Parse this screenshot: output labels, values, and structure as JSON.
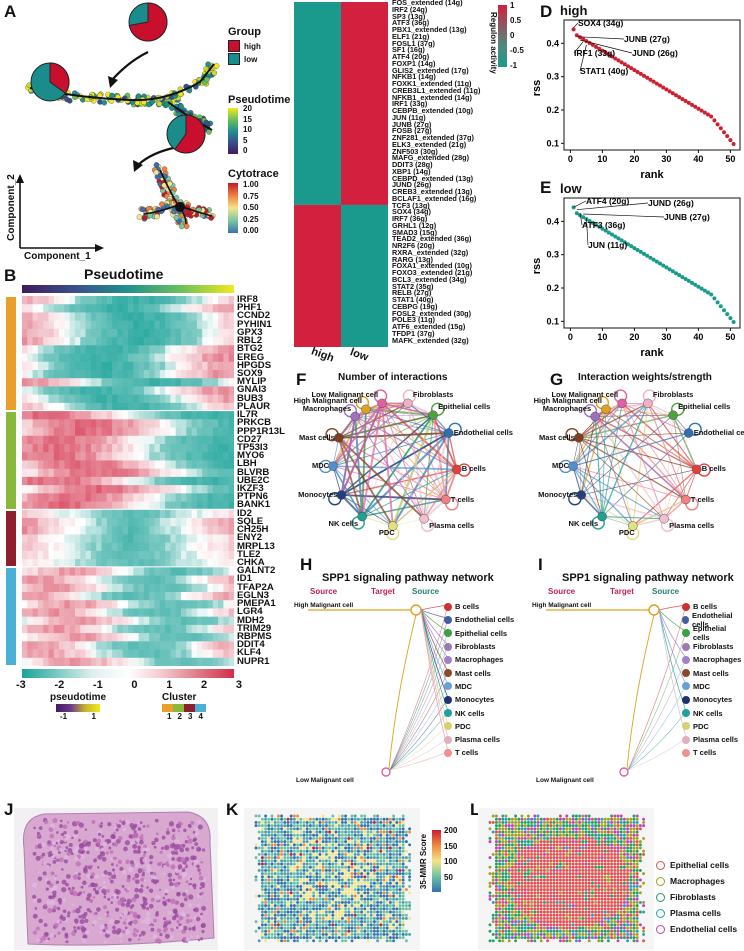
{
  "panels": {
    "A": {
      "label": "A",
      "legend_group_title": "Group",
      "legend_group_items": [
        {
          "name": "high",
          "color": "#c8102e"
        },
        {
          "name": "low",
          "color": "#1a8c8c"
        }
      ],
      "legend_pseudotime_title": "Pseudotime",
      "legend_pseudotime_ticks": [
        "20",
        "15",
        "10",
        "5",
        "0"
      ],
      "legend_cytotrace_title": "Cytotrace",
      "legend_cytotrace_ticks": [
        "1.00",
        "0.75",
        "0.50",
        "0.25",
        "0.00"
      ],
      "axis_y": "Component_2",
      "axis_x": "Component_1",
      "pie_fractions_high": [
        0.72,
        0.35,
        0.6
      ]
    },
    "B": {
      "label": "B",
      "title": "Pseudotime",
      "genes": [
        "IRF8",
        "PHF1",
        "CCND2",
        "PYHIN1",
        "GPX3",
        "RBL2",
        "BTG2",
        "EREG",
        "HPGDS",
        "SOX9",
        "MYLIP",
        "GNAI3",
        "BUB3",
        "PLAUR",
        "IL7R",
        "PRKCB",
        "PPP1R13L",
        "CD27",
        "TP53I3",
        "MYO6",
        "LBH",
        "BLVRB",
        "UBE2C",
        "IKZF3",
        "PTPN6",
        "BANK1",
        "ID2",
        "SQLE",
        "CH25H",
        "ENY2",
        "MRPL13",
        "TLE2",
        "CHKA",
        "GALNT2",
        "ID1",
        "TFAP2A",
        "EGLN3",
        "PMEPA1",
        "LGR4",
        "MDH2",
        "TRIM29",
        "RBPMS",
        "DDIT4",
        "KLF4",
        "NUPR1"
      ],
      "cluster_sizes": [
        14,
        12,
        7,
        12
      ],
      "cluster_colors": [
        "#e8a02a",
        "#8ab83a",
        "#8e1f2c",
        "#4ab0d8"
      ],
      "colorbar_ticks": [
        "-3",
        "-2",
        "-1",
        "0",
        "1",
        "2",
        "3"
      ],
      "legend_pseudotime_label": "pseudotime",
      "legend_pseudotime_ticks": [
        "-1",
        "1"
      ],
      "legend_cluster_label": "Cluster",
      "legend_cluster_ticks": [
        "1",
        "2",
        "3",
        "4"
      ]
    },
    "C": {
      "label": "C",
      "regulons": [
        "FOS_extended (14g)",
        "IRF2 (24g)",
        "SP3 (13g)",
        "ATF3 (36g)",
        "PBX1_extended (13g)",
        "ELF1 (21g)",
        "FOSL1 (37g)",
        "SF1 (16g)",
        "ATF4 (20g)",
        "FOXP1 (14g)",
        "GLIS2_extended (17g)",
        "NFKB1 (14g)",
        "FOXK1_extended (11g)",
        "CREB3L1_extended (11g)",
        "NFKB1_extended (14g)",
        "IRF1 (33g)",
        "CEBPB_extended (10g)",
        "JUN (11g)",
        "JUNB (27g)",
        "FOSB (27g)",
        "ZNF281_extended (37g)",
        "ELK3_extended (21g)",
        "ZNF503 (30g)",
        "MAFG_extended (28g)",
        "DDIT3 (28g)",
        "XBP1 (14g)",
        "CEBPD_extended (13g)",
        "JUND (26g)",
        "CREB3_extended (13g)",
        "BCLAF1_extended (16g)",
        "TCF3 (13g)",
        "SOX4 (34g)",
        "IRF7 (36g)",
        "GRHL1 (12g)",
        "SMAD3 (15g)",
        "TEAD2_extended (36g)",
        "NR2F6 (20g)",
        "RXRA_extended (32g)",
        "RARG (13g)",
        "FOXA1_extended (10g)",
        "FOXO3_extended (21g)",
        "BCL3_extended (34g)",
        "STAT2 (35g)",
        "RELB (27g)",
        "STAT1 (40g)",
        "CEBPG (19g)",
        "FOSL2_extended (30g)",
        "POLE3 (11g)",
        "ATF6_extended (15g)",
        "TFDP1 (37g)",
        "MAFK_extended (32g)"
      ],
      "top_block_count": 30,
      "x_labels": [
        "high",
        "low"
      ],
      "colorbar_title": "Regulon activity",
      "colorbar_ticks": [
        "1",
        "0.5",
        "0",
        "-0.5",
        "-1"
      ]
    },
    "D": {
      "label": "D",
      "title": "high",
      "xlabel": "rank",
      "ylabel": "rss",
      "annotations": [
        {
          "text": "SOX4 (34g)",
          "rank": 1,
          "rss": 0.447
        },
        {
          "text": "JUNB (27g)",
          "rank": 2,
          "rss": 0.42
        },
        {
          "text": "IRF1 (33g)",
          "rank": 4,
          "rss": 0.405
        },
        {
          "text": "JUND (26g)",
          "rank": 3,
          "rss": 0.41
        },
        {
          "text": "STAT1 (40g)",
          "rank": 5,
          "rss": 0.395
        }
      ]
    },
    "E": {
      "label": "E",
      "title": "low",
      "xlabel": "rank",
      "ylabel": "rss",
      "annotations": [
        {
          "text": "ATF4 (20g)",
          "rank": 1,
          "rss": 0.442
        },
        {
          "text": "JUND (26g)",
          "rank": 2,
          "rss": 0.435
        },
        {
          "text": "JUNB (27g)",
          "rank": 4,
          "rss": 0.422
        },
        {
          "text": "ATF3 (36g)",
          "rank": 3,
          "rss": 0.425
        },
        {
          "text": "JUN (11g)",
          "rank": 5,
          "rss": 0.41
        }
      ]
    },
    "F": {
      "label": "F",
      "title": "Number of interactions"
    },
    "G": {
      "label": "G",
      "title": "Interaction weights/strength"
    },
    "cells": [
      {
        "name": "High Malignant cell",
        "color": "#e0a020"
      },
      {
        "name": "Fibroblasts",
        "color": "#f0b0c8"
      },
      {
        "name": "Epithelial cells",
        "color": "#50a040"
      },
      {
        "name": "Endothelial cells",
        "color": "#3070b0"
      },
      {
        "name": "B cells",
        "color": "#e04040"
      },
      {
        "name": "T cells",
        "color": "#f08080"
      },
      {
        "name": "Plasma cells",
        "color": "#f0c0d0"
      },
      {
        "name": "PDC",
        "color": "#e0e080"
      },
      {
        "name": "NK cells",
        "color": "#20a090"
      },
      {
        "name": "Monocytes",
        "color": "#204080"
      },
      {
        "name": "MDC",
        "color": "#5090d0"
      },
      {
        "name": "Mast cells",
        "color": "#804020"
      },
      {
        "name": "Macrophages",
        "color": "#a070c0"
      },
      {
        "name": "Low Malignant cell",
        "color": "#e060a0"
      }
    ],
    "H": {
      "label": "H",
      "title": "SPP1 signaling pathway network",
      "header_source": "Source",
      "header_target": "Target",
      "header_source2": "Source",
      "node_top": "High Malignant cell",
      "node_bottom": "Low Malignant cell",
      "legend": [
        {
          "name": "B cells",
          "color": "#d03030"
        },
        {
          "name": "Endothelial cells",
          "color": "#4060a0"
        },
        {
          "name": "Epithelial cells",
          "color": "#3aa040"
        },
        {
          "name": "Fibroblasts",
          "color": "#9a7ab0"
        },
        {
          "name": "Macrophages",
          "color": "#a080c8"
        },
        {
          "name": "Mast cells",
          "color": "#8a4a2a"
        },
        {
          "name": "MDC",
          "color": "#6aa0d8"
        },
        {
          "name": "Monocytes",
          "color": "#203070"
        },
        {
          "name": "NK cells",
          "color": "#20a0a0"
        },
        {
          "name": "PDC",
          "color": "#d8d070"
        },
        {
          "name": "Plasma cells",
          "color": "#e0b0c0"
        },
        {
          "name": "T cells",
          "color": "#f09090"
        }
      ]
    },
    "I": {
      "label": "I",
      "title": "SPP1 signaling pathway network"
    },
    "J": {
      "label": "J"
    },
    "K": {
      "label": "K",
      "colorbar_title": "35-MMR Score",
      "colorbar_ticks": [
        "200",
        "150",
        "100",
        "50"
      ]
    },
    "L": {
      "label": "L",
      "legend": [
        {
          "name": "Epithelial cells",
          "color": "#e05050"
        },
        {
          "name": "Macrophages",
          "color": "#a0a020"
        },
        {
          "name": "Fibroblasts",
          "color": "#20a060"
        },
        {
          "name": "Plasma cells",
          "color": "#20a0c0"
        },
        {
          "name": "Endothelial cells",
          "color": "#c040c0"
        }
      ]
    }
  }
}
